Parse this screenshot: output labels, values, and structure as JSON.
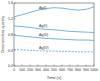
{
  "chart_data": {
    "type": "line",
    "x_label": "Time (s)",
    "y_label": "Dimensionless quantity",
    "x": [
      0,
      100,
      200,
      300,
      400,
      500,
      600,
      700,
      800,
      900,
      1000
    ],
    "xlim": [
      0,
      1000
    ],
    "xticks": [
      0,
      100,
      200,
      300,
      400,
      500,
      600,
      700,
      800,
      900,
      1000
    ],
    "ylim": [
      0,
      1.6
    ],
    "yticks": [
      {
        "value": 0,
        "label": "0.0"
      },
      {
        "value": 0.4,
        "label": "0.4"
      },
      {
        "value": 0.8,
        "label": "0.8"
      },
      {
        "value": 1.2,
        "label": "1.2"
      },
      {
        "value": 1.6,
        "label": "1.6"
      }
    ],
    "grid": false,
    "series": [
      {
        "name": "Ag(I)",
        "color": "#4fa3d4",
        "line_style": "solid",
        "values": [
          1.25,
          1.3,
          1.36,
          1.42,
          1.46,
          1.48,
          1.47,
          1.44,
          1.42,
          1.44,
          1.5
        ]
      },
      {
        "name": "Ag(II)",
        "color": "#4fa3d4",
        "line_style": "solid",
        "values": [
          1.02,
          1.0,
          0.98,
          0.95,
          0.93,
          0.92,
          0.9,
          0.88,
          0.87,
          0.86,
          0.85
        ]
      },
      {
        "name": "Ag(III)",
        "color": "#4fa3d4",
        "line_style": "solid",
        "values": [
          0.78,
          0.76,
          0.74,
          0.72,
          0.7,
          0.69,
          0.68,
          0.67,
          0.66,
          0.66,
          0.65
        ]
      },
      {
        "name": "Ag(IV)",
        "color": "#4fa3d4",
        "line_style": "dashed",
        "values": [
          0.42,
          0.41,
          0.4,
          0.39,
          0.38,
          0.38,
          0.37,
          0.37,
          0.36,
          0.36,
          0.36
        ]
      }
    ]
  }
}
